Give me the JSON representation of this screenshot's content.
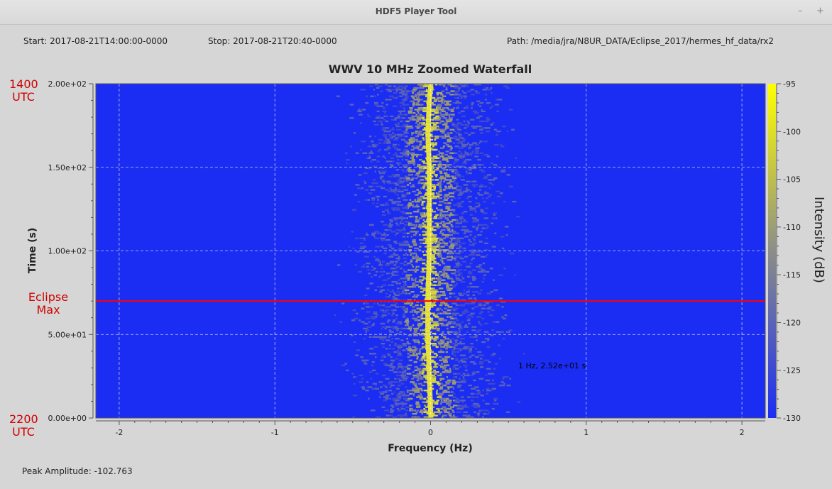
{
  "window": {
    "title": "HDF5 Player Tool",
    "minimize_glyph": "–",
    "maximize_glyph": "+"
  },
  "info": {
    "start": "Start: 2017-08-21T14:00:00-0000",
    "stop": "Stop: 2017-08-21T20:40-0000",
    "path": "Path: /media/jra/N8UR_DATA/Eclipse_2017/hermes_hf_data/rx2"
  },
  "annotations": {
    "top_time": "1400",
    "top_unit": "UTC",
    "bottom_time": "2200",
    "bottom_unit": "UTC",
    "eclipse_line1": "Eclipse",
    "eclipse_line2": "Max",
    "eclipse_time_s": 70,
    "cursor_readout": "1 Hz, 2.52e+01 s"
  },
  "footer": {
    "peak_amplitude": "Peak Amplitude: -102.763"
  },
  "colors": {
    "background_blue": "#1b2df2",
    "signal_yellow": "#ffff00",
    "annotation_red": "#d00000",
    "eclipse_line": "#ff0000",
    "window_bg": "#d6d6d6"
  },
  "chart_data": {
    "type": "heatmap",
    "title": "WWV 10 MHz Zoomed Waterfall",
    "xlabel": "Frequency (Hz)",
    "ylabel": "Time (s)",
    "colorbar_label": "Intensity (dB)",
    "xlim": [
      -2.15,
      2.15
    ],
    "ylim": [
      0,
      200
    ],
    "xticks": [
      -2,
      -1,
      0,
      1,
      2
    ],
    "xtick_labels": [
      "-2",
      "-1",
      "0",
      "1",
      "2"
    ],
    "yticks": [
      0,
      50,
      100,
      150,
      200
    ],
    "ytick_labels": [
      "0.00e+00",
      "5.00e+01",
      "1.00e+02",
      "1.50e+02",
      "2.00e+02"
    ],
    "colorbar_range": [
      -130,
      -95
    ],
    "colorbar_ticks": [
      -95,
      -100,
      -105,
      -110,
      -115,
      -120,
      -125,
      -130
    ],
    "colorbar_tick_labels": [
      "-95",
      "-100",
      "-105",
      "-110",
      "-115",
      "-120",
      "-125",
      "-130"
    ],
    "grid": true,
    "carrier_trace": [
      {
        "t": 0,
        "f": 0.0
      },
      {
        "t": 25,
        "f": -0.01
      },
      {
        "t": 50,
        "f": -0.02
      },
      {
        "t": 70,
        "f": -0.02
      },
      {
        "t": 100,
        "f": -0.01
      },
      {
        "t": 130,
        "f": -0.01
      },
      {
        "t": 150,
        "f": -0.01
      },
      {
        "t": 170,
        "f": -0.02
      },
      {
        "t": 190,
        "f": -0.01
      },
      {
        "t": 200,
        "f": 0.0
      }
    ]
  }
}
